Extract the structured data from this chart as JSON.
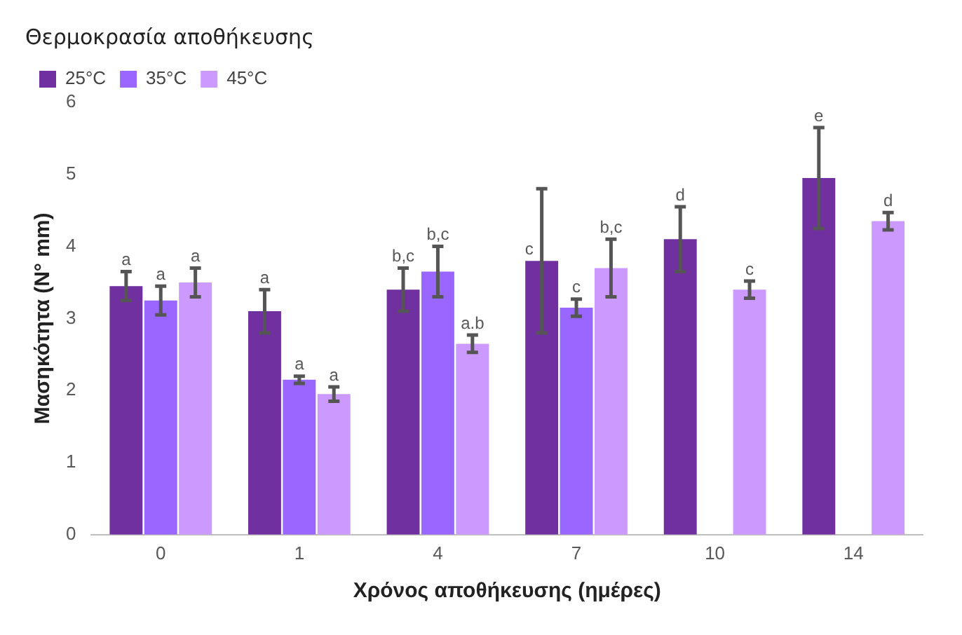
{
  "chart_data": {
    "type": "bar",
    "xlabel": "Χρόνος αποθήκευσης (ημέρες)",
    "ylabel": "Μασηκότητα (N° mm)",
    "legend_title": "Θερμοκρασία αποθήκευσης",
    "categories": [
      "0",
      "1",
      "4",
      "7",
      "10",
      "14"
    ],
    "series": [
      {
        "name": "25°C",
        "color": "#7030a0",
        "values": [
          3.45,
          3.1,
          3.4,
          3.8,
          4.1,
          4.95
        ],
        "errors": [
          0.2,
          0.3,
          0.3,
          1.0,
          0.45,
          0.7
        ],
        "value_labels": [
          "a",
          "a",
          "b,c",
          "c",
          "d",
          "e"
        ]
      },
      {
        "name": "35°C",
        "color": "#9966ff",
        "values": [
          3.25,
          2.15,
          3.65,
          3.15,
          null,
          null
        ],
        "errors": [
          0.2,
          0.05,
          0.35,
          0.12,
          null,
          null
        ],
        "value_labels": [
          "a",
          "a",
          "b,c",
          "c",
          null,
          null
        ]
      },
      {
        "name": "45°C",
        "color": "#cc99ff",
        "values": [
          3.5,
          1.95,
          2.65,
          3.7,
          3.4,
          4.35
        ],
        "errors": [
          0.2,
          0.1,
          0.12,
          0.4,
          0.12,
          0.12
        ],
        "value_labels": [
          "a",
          "a",
          "a.b",
          "b,c",
          "c",
          "d"
        ]
      }
    ],
    "ylim": [
      0,
      6
    ],
    "yticks": [
      0,
      1,
      2,
      3,
      4,
      5,
      6
    ],
    "grid": false,
    "legend": "top left"
  }
}
